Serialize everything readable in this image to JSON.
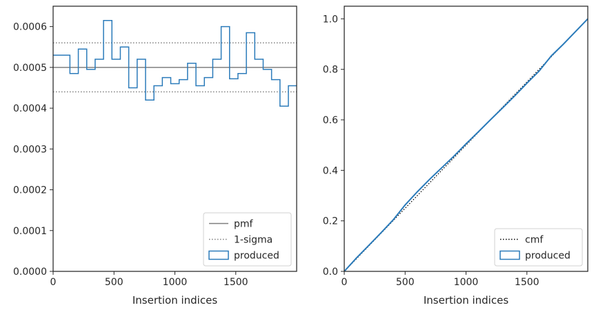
{
  "chart_data": [
    {
      "type": "step-histogram",
      "xlabel": "Insertion indices",
      "ylabel": "",
      "xlim": [
        0,
        2000
      ],
      "ylim": [
        0,
        0.00065
      ],
      "x_ticks": [
        0,
        500,
        1000,
        1500
      ],
      "y_ticks": [
        0.0,
        0.0001,
        0.0002,
        0.0003,
        0.0004,
        0.0005,
        0.0006
      ],
      "y_tick_labels": [
        "0.0000",
        "0.0001",
        "0.0002",
        "0.0003",
        "0.0004",
        "0.0005",
        "0.0006"
      ],
      "reference_lines": [
        {
          "name": "pmf",
          "y": 0.0005,
          "style": "solid",
          "color": "#7f7f7f"
        },
        {
          "name": "1-sigma",
          "y": 0.00056,
          "style": "dotted",
          "color": "#7f7f7f"
        },
        {
          "name": "1-sigma-lower",
          "y": 0.00044,
          "style": "dotted",
          "color": "#7f7f7f"
        }
      ],
      "series": [
        {
          "name": "produced",
          "color": "#2b7bba",
          "bin_edges": [
            0,
            69,
            138,
            207,
            276,
            345,
            414,
            483,
            552,
            621,
            690,
            759,
            828,
            897,
            966,
            1035,
            1104,
            1173,
            1242,
            1311,
            1380,
            1449,
            1518,
            1587,
            1656,
            1725,
            1794,
            1863,
            1932,
            2000
          ],
          "values": [
            0.00053,
            0.00053,
            0.000485,
            0.000545,
            0.000495,
            0.00052,
            0.000615,
            0.00052,
            0.00055,
            0.00045,
            0.00052,
            0.00042,
            0.000455,
            0.000475,
            0.00046,
            0.00047,
            0.00051,
            0.000455,
            0.000475,
            0.00052,
            0.0006,
            0.000472,
            0.000485,
            0.000585,
            0.00052,
            0.000495,
            0.00047,
            0.000405,
            0.000455
          ]
        }
      ],
      "legend": {
        "position": "lower-right",
        "entries": [
          {
            "label": "pmf",
            "style": "solid-line"
          },
          {
            "label": "1-sigma",
            "style": "dotted-line"
          },
          {
            "label": "produced",
            "style": "patch"
          }
        ]
      }
    },
    {
      "type": "line",
      "xlabel": "Insertion indices",
      "ylabel": "",
      "xlim": [
        0,
        2000
      ],
      "ylim": [
        0,
        1.05
      ],
      "x_ticks": [
        0,
        500,
        1000,
        1500
      ],
      "y_ticks": [
        0.0,
        0.2,
        0.4,
        0.6,
        0.8,
        1.0
      ],
      "y_tick_labels": [
        "0.0",
        "0.2",
        "0.4",
        "0.6",
        "0.8",
        "1.0"
      ],
      "series": [
        {
          "name": "cmf",
          "style": "dotted",
          "color": "#000000",
          "x": [
            0,
            2000
          ],
          "y": [
            0,
            1.0
          ]
        },
        {
          "name": "produced",
          "style": "solid",
          "color": "#2b7bba",
          "x": [
            0,
            100,
            200,
            300,
            400,
            500,
            600,
            700,
            800,
            900,
            1000,
            1100,
            1200,
            1300,
            1400,
            1500,
            1600,
            1700,
            1800,
            1900,
            2000
          ],
          "y": [
            0,
            0.053,
            0.102,
            0.152,
            0.203,
            0.263,
            0.315,
            0.364,
            0.41,
            0.456,
            0.505,
            0.552,
            0.6,
            0.647,
            0.695,
            0.745,
            0.793,
            0.853,
            0.9,
            0.95,
            1.0
          ]
        }
      ],
      "legend": {
        "position": "lower-right",
        "entries": [
          {
            "label": "cmf",
            "style": "dotted-line"
          },
          {
            "label": "produced",
            "style": "patch"
          }
        ]
      }
    }
  ]
}
